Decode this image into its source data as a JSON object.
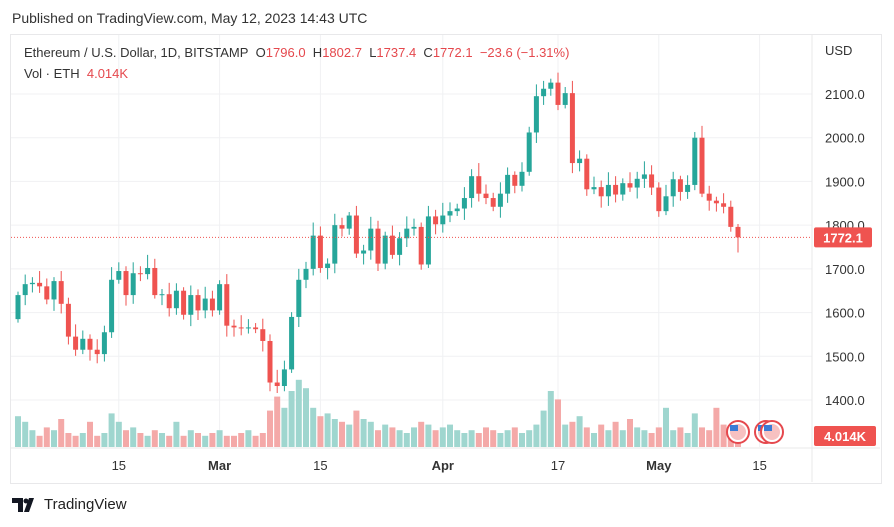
{
  "header": {
    "published": "Published on TradingView.com, May 12, 2023 14:43 UTC"
  },
  "legend": {
    "symbol": "Ethereum / U.S. Dollar, 1D, BITSTAMP",
    "o_label": "O",
    "o": "1796.0",
    "h_label": "H",
    "h": "1802.7",
    "l_label": "L",
    "l": "1737.4",
    "c_label": "C",
    "c": "1772.1",
    "change": "−23.6 (−1.31%)",
    "vol_label": "Vol · ETH",
    "vol": "4.014K"
  },
  "footer": {
    "brand": "TradingView"
  },
  "colors": {
    "up": "#26a69a",
    "down": "#ef5350",
    "up_vol": "#9fd6cf",
    "down_vol": "#f4a9a8",
    "price_line": "#ef5350"
  },
  "chart_data": {
    "type": "candlestick",
    "title": "Ethereum / U.S. Dollar, 1D, BITSTAMP",
    "ylabel": "USD",
    "ylim": [
      1310,
      2170
    ],
    "y_ticks": [
      "2100.0",
      "2000.0",
      "1900.0",
      "1800.0",
      "1700.0",
      "1600.0",
      "1500.0",
      "1400.0"
    ],
    "x_ticks": [
      {
        "label": "15",
        "day": 14
      },
      {
        "label": "Mar",
        "day": 28
      },
      {
        "label": "15",
        "day": 42
      },
      {
        "label": "Apr",
        "day": 59
      },
      {
        "label": "17",
        "day": 75
      },
      {
        "label": "May",
        "day": 89
      },
      {
        "label": "15",
        "day": 103
      }
    ],
    "last_price": "1772.1",
    "last_volume": "4.014K",
    "closes": [
      1640,
      1665,
      1668,
      1660,
      1630,
      1672,
      1620,
      1545,
      1515,
      1540,
      1515,
      1505,
      1555,
      1675,
      1695,
      1640,
      1690,
      1688,
      1702,
      1640,
      1642,
      1610,
      1650,
      1595,
      1640,
      1605,
      1632,
      1605,
      1665,
      1570,
      1566,
      1565,
      1566,
      1562,
      1535,
      1440,
      1432,
      1470,
      1590,
      1675,
      1700,
      1776,
      1702,
      1712,
      1800,
      1792,
      1822,
      1735,
      1742,
      1792,
      1712,
      1776,
      1732,
      1770,
      1792,
      1796,
      1710,
      1820,
      1802,
      1822,
      1832,
      1838,
      1862,
      1912,
      1872,
      1862,
      1842,
      1872,
      1915,
      1890,
      1922,
      2012,
      2095,
      2112,
      2126,
      2075,
      2102,
      1942,
      1952,
      1882,
      1887,
      1866,
      1892,
      1870,
      1896,
      1886,
      1906,
      1916,
      1886,
      1832,
      1866,
      1905,
      1876,
      1892,
      2000,
      1872,
      1856,
      1850,
      1842,
      1796,
      1772.1
    ],
    "volumes": [
      11,
      9,
      6,
      4,
      7,
      6,
      10,
      5,
      4,
      5,
      9,
      4,
      5,
      12,
      9,
      6,
      7,
      5,
      4,
      6,
      5,
      4,
      9,
      4,
      6,
      5,
      4,
      5,
      6,
      4,
      4,
      5,
      6,
      4,
      5,
      13,
      18,
      14,
      20,
      24,
      21,
      14,
      11,
      12,
      10,
      9,
      8,
      13,
      10,
      9,
      6,
      8,
      7,
      6,
      5,
      7,
      9,
      8,
      6,
      7,
      8,
      6,
      5,
      6,
      5,
      7,
      6,
      5,
      6,
      7,
      5,
      6,
      8,
      13,
      20,
      17,
      8,
      9,
      11,
      7,
      5,
      8,
      6,
      9,
      6,
      10,
      7,
      6,
      5,
      7,
      14,
      6,
      7,
      5,
      12,
      7,
      6,
      14,
      8,
      5,
      4.014
    ],
    "volume_max": 25
  }
}
